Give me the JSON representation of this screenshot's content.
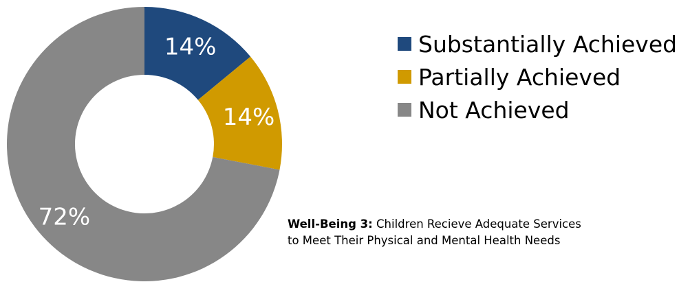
{
  "chart_data": {
    "type": "pie",
    "donut": true,
    "slices": [
      {
        "label": "Substantially Achieved",
        "value": 14,
        "display": "14%",
        "color": "#1F497D"
      },
      {
        "label": "Partially Achieved",
        "value": 14,
        "display": "14%",
        "color": "#D09A00"
      },
      {
        "label": "Not Achieved",
        "value": 72,
        "display": "72%",
        "color": "#878787"
      }
    ],
    "legend_position": "right",
    "caption": {
      "bold": "Well-Being 3:",
      "line1": " Children Recieve Adequate Services",
      "line2": "to Meet Their Physical and Mental Health Needs"
    }
  }
}
